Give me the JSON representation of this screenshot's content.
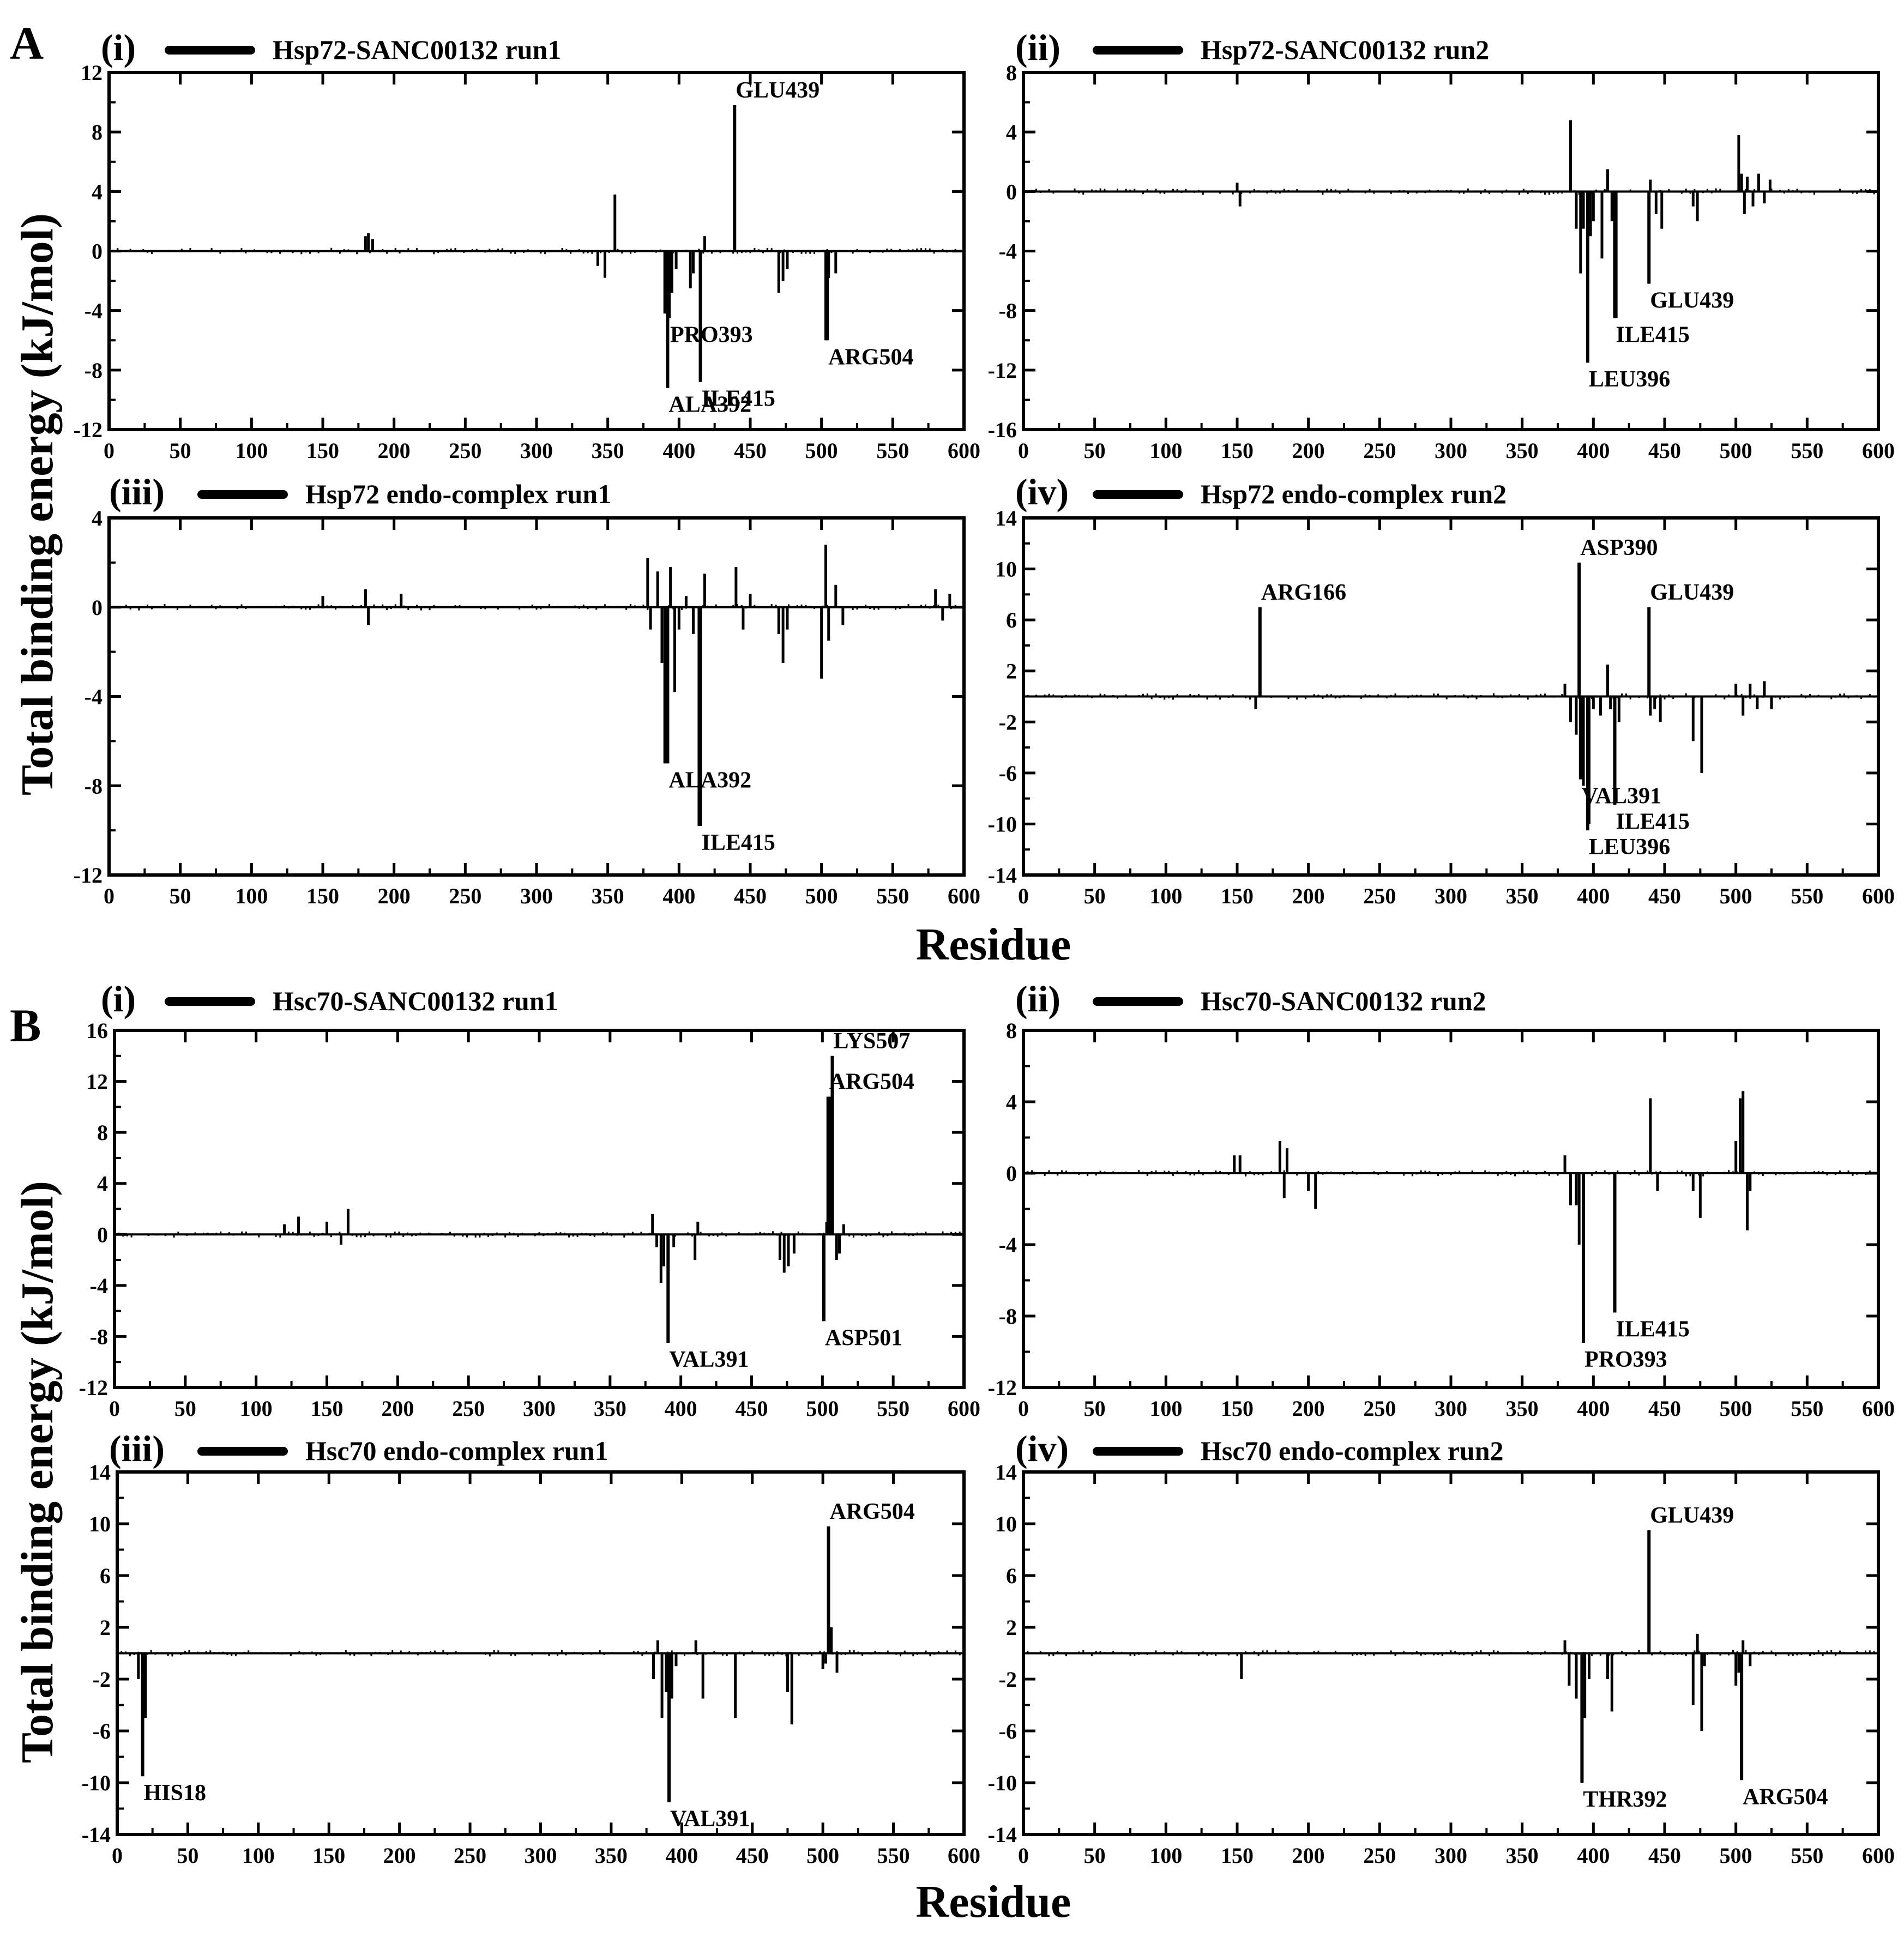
{
  "figure": {
    "section_labels": [
      "A",
      "B"
    ],
    "ylabel": "Total binding energy (kJ/mol)",
    "xlabel": "Residue"
  },
  "chart_data": [
    {
      "type": "bar",
      "section": "A",
      "sub": "(i)",
      "legend": "Hsp72-SANC00132 run1",
      "xlim": [
        0,
        600
      ],
      "xticks": [
        0,
        50,
        100,
        150,
        200,
        250,
        300,
        350,
        400,
        450,
        500,
        550,
        600
      ],
      "ylim": [
        -12,
        12
      ],
      "yticks": [
        -12,
        -8,
        -4,
        0,
        4,
        8,
        12
      ],
      "x": [
        180,
        182,
        185,
        343,
        348,
        355,
        390,
        392,
        393,
        395,
        398,
        408,
        410,
        415,
        418,
        470,
        473,
        476,
        503,
        505,
        510
      ],
      "values": [
        1.0,
        1.2,
        0.8,
        -1.0,
        -1.8,
        3.8,
        -4.2,
        -9.2,
        -4.5,
        -2.8,
        -1.2,
        -2.5,
        -1.5,
        -8.8,
        1.0,
        -2.8,
        -2.0,
        -1.2,
        -6.0,
        -1.8,
        -1.5
      ],
      "annotations": [
        {
          "text": "GLU439",
          "x": 439,
          "y": 9.8
        },
        {
          "text": "PRO393",
          "x": 393,
          "y": -4.5
        },
        {
          "text": "ILE415",
          "x": 415,
          "y": -8.8
        },
        {
          "text": "ALA392",
          "x": 392,
          "y": -9.2
        },
        {
          "text": "ARG504",
          "x": 504,
          "y": -6.0
        }
      ]
    },
    {
      "type": "bar",
      "section": "A",
      "sub": "(ii)",
      "legend": "Hsp72-SANC00132 run2",
      "xlim": [
        0,
        600
      ],
      "xticks": [
        0,
        50,
        100,
        150,
        200,
        250,
        300,
        350,
        400,
        450,
        500,
        550,
        600
      ],
      "ylim": [
        -16,
        8
      ],
      "yticks": [
        -16,
        -12,
        -8,
        -4,
        0,
        4,
        8
      ],
      "x": [
        150,
        152,
        384,
        388,
        391,
        393,
        398,
        400,
        406,
        410,
        413,
        416,
        440,
        444,
        448,
        470,
        473,
        502,
        504,
        506,
        508,
        512,
        516,
        520,
        524
      ],
      "values": [
        0.6,
        -1.0,
        4.8,
        -2.5,
        -5.5,
        -2.5,
        -3.0,
        -2.0,
        -4.5,
        1.5,
        -2.0,
        -8.5,
        0.8,
        -1.5,
        -2.5,
        -1.0,
        -2.0,
        3.8,
        1.2,
        -1.5,
        1.0,
        -1.0,
        1.2,
        -0.8,
        0.8
      ],
      "annotations": [
        {
          "text": "GLU439",
          "x": 439,
          "y": -6.2
        },
        {
          "text": "ILE415",
          "x": 415,
          "y": -8.5
        },
        {
          "text": "LEU396",
          "x": 396,
          "y": -11.5
        }
      ]
    },
    {
      "type": "bar",
      "section": "A",
      "sub": "(iii)",
      "legend": "Hsp72 endo-complex run1",
      "xlim": [
        0,
        600
      ],
      "xticks": [
        0,
        50,
        100,
        150,
        200,
        250,
        300,
        350,
        400,
        450,
        500,
        550,
        600
      ],
      "ylim": [
        -12,
        4
      ],
      "yticks": [
        -12,
        -8,
        -4,
        0,
        4
      ],
      "x": [
        150,
        180,
        182,
        205,
        378,
        380,
        385,
        388,
        390,
        394,
        397,
        400,
        405,
        410,
        414,
        418,
        440,
        445,
        450,
        470,
        473,
        476,
        500,
        503,
        505,
        510,
        515,
        580,
        585,
        590
      ],
      "values": [
        0.5,
        0.8,
        -0.8,
        0.6,
        2.2,
        -1.0,
        1.6,
        -2.5,
        -7.0,
        1.8,
        -3.8,
        -1.0,
        0.5,
        -1.2,
        -9.8,
        1.5,
        1.8,
        -1.0,
        0.6,
        -1.2,
        -2.5,
        -1.0,
        -3.2,
        2.8,
        -1.5,
        1.0,
        -0.8,
        0.8,
        -0.6,
        0.6
      ],
      "annotations": [
        {
          "text": "ALA392",
          "x": 392,
          "y": -7.0
        },
        {
          "text": "ILE415",
          "x": 415,
          "y": -9.8
        }
      ]
    },
    {
      "type": "bar",
      "section": "A",
      "sub": "(iv)",
      "legend": "Hsp72 endo-complex run2",
      "xlim": [
        0,
        600
      ],
      "xticks": [
        0,
        50,
        100,
        150,
        200,
        250,
        300,
        350,
        400,
        450,
        500,
        550,
        600
      ],
      "ylim": [
        -14,
        14
      ],
      "yticks": [
        -14,
        -10,
        -6,
        -2,
        2,
        6,
        10,
        14
      ],
      "x": [
        163,
        380,
        384,
        388,
        393,
        397,
        400,
        405,
        410,
        412,
        418,
        440,
        443,
        447,
        470,
        476,
        500,
        505,
        510,
        515,
        520,
        525
      ],
      "values": [
        -1.0,
        1.0,
        -2.0,
        -3.0,
        -7.0,
        -10.0,
        -1.0,
        -1.5,
        2.5,
        -1.0,
        -2.0,
        -1.5,
        -1.0,
        -2.0,
        -3.5,
        -6.0,
        1.0,
        -1.5,
        1.0,
        -1.0,
        1.2,
        -1.0
      ],
      "annotations": [
        {
          "text": "ARG166",
          "x": 166,
          "y": 7.0
        },
        {
          "text": "ASP390",
          "x": 390,
          "y": 10.5
        },
        {
          "text": "GLU439",
          "x": 439,
          "y": 7.0
        },
        {
          "text": "VAL391",
          "x": 391,
          "y": -6.5
        },
        {
          "text": "ILE415",
          "x": 415,
          "y": -8.5
        },
        {
          "text": "LEU396",
          "x": 396,
          "y": -10.5
        }
      ]
    },
    {
      "type": "bar",
      "section": "B",
      "sub": "(i)",
      "legend": "Hsc70-SANC00132 run1",
      "xlim": [
        0,
        600
      ],
      "xticks": [
        0,
        50,
        100,
        150,
        200,
        250,
        300,
        350,
        400,
        450,
        500,
        550,
        600
      ],
      "ylim": [
        -12,
        16
      ],
      "yticks": [
        -12,
        -8,
        -4,
        0,
        4,
        8,
        12,
        16
      ],
      "x": [
        120,
        130,
        150,
        160,
        165,
        380,
        383,
        386,
        388,
        395,
        410,
        412,
        470,
        473,
        476,
        480,
        503,
        505,
        506,
        510,
        512,
        515
      ],
      "values": [
        0.8,
        1.4,
        1.0,
        -0.8,
        2.0,
        1.6,
        -1.0,
        -3.8,
        -2.5,
        -1.0,
        -2.0,
        1.0,
        -2.0,
        -3.0,
        -2.5,
        -1.5,
        1.0,
        10.8,
        3.0,
        -2.0,
        -1.5,
        0.8
      ],
      "annotations": [
        {
          "text": "LYS507",
          "x": 507,
          "y": 14.0
        },
        {
          "text": "ARG504",
          "x": 504,
          "y": 10.8
        },
        {
          "text": "VAL391",
          "x": 391,
          "y": -8.5
        },
        {
          "text": "ASP501",
          "x": 501,
          "y": -6.8
        }
      ]
    },
    {
      "type": "bar",
      "section": "B",
      "sub": "(ii)",
      "legend": "Hsc70-SANC00132 run2",
      "xlim": [
        0,
        600
      ],
      "xticks": [
        0,
        50,
        100,
        150,
        200,
        250,
        300,
        350,
        400,
        450,
        500,
        550,
        600
      ],
      "ylim": [
        -12,
        8
      ],
      "yticks": [
        -12,
        -8,
        -4,
        0,
        4,
        8
      ],
      "x": [
        148,
        152,
        180,
        183,
        185,
        200,
        205,
        380,
        384,
        388,
        390,
        440,
        445,
        470,
        475,
        500,
        503,
        505,
        508,
        510
      ],
      "values": [
        1.0,
        1.0,
        1.8,
        -1.4,
        1.4,
        -1.0,
        -2.0,
        1.0,
        -1.8,
        -1.8,
        -4.0,
        4.2,
        -1.0,
        -1.0,
        -2.5,
        1.8,
        4.2,
        4.6,
        -3.2,
        -1.0
      ],
      "annotations": [
        {
          "text": "ILE415",
          "x": 415,
          "y": -7.8
        },
        {
          "text": "PRO393",
          "x": 393,
          "y": -9.5
        }
      ]
    },
    {
      "type": "bar",
      "section": "B",
      "sub": "(iii)",
      "legend": "Hsc70 endo-complex run1",
      "xlim": [
        0,
        600
      ],
      "xticks": [
        0,
        50,
        100,
        150,
        200,
        250,
        300,
        350,
        400,
        450,
        500,
        550,
        600
      ],
      "ylim": [
        -14,
        14
      ],
      "yticks": [
        -14,
        -10,
        -6,
        -2,
        2,
        6,
        10,
        14
      ],
      "x": [
        15,
        18,
        20,
        380,
        383,
        386,
        389,
        393,
        396,
        410,
        415,
        438,
        475,
        478,
        500,
        502,
        506,
        510
      ],
      "values": [
        -2.0,
        -9.5,
        -5.0,
        -2.0,
        1.0,
        -5.0,
        -3.0,
        -3.5,
        -1.0,
        1.0,
        -3.5,
        -5.0,
        -3.0,
        -5.5,
        -1.2,
        -0.8,
        2.0,
        -1.5
      ],
      "annotations": [
        {
          "text": "ARG504",
          "x": 504,
          "y": 9.8
        },
        {
          "text": "HIS18",
          "x": 18,
          "y": -9.5
        },
        {
          "text": "VAL391",
          "x": 391,
          "y": -11.5
        }
      ]
    },
    {
      "type": "bar",
      "section": "B",
      "sub": "(iv)",
      "legend": "Hsc70 endo-complex run2",
      "xlim": [
        0,
        600
      ],
      "xticks": [
        0,
        50,
        100,
        150,
        200,
        250,
        300,
        350,
        400,
        450,
        500,
        550,
        600
      ],
      "ylim": [
        -14,
        14
      ],
      "yticks": [
        -14,
        -10,
        -6,
        -2,
        2,
        6,
        10,
        14
      ],
      "x": [
        153,
        380,
        383,
        388,
        394,
        397,
        410,
        413,
        470,
        473,
        476,
        478,
        500,
        502,
        505,
        510
      ],
      "values": [
        -2.0,
        1.0,
        -2.5,
        -3.5,
        -5.0,
        -2.0,
        -2.0,
        -4.5,
        -4.0,
        1.5,
        -6.0,
        -1.0,
        -2.5,
        -1.5,
        1.0,
        -1.0
      ],
      "annotations": [
        {
          "text": "GLU439",
          "x": 439,
          "y": 9.5
        },
        {
          "text": "THR392",
          "x": 392,
          "y": -10.0
        },
        {
          "text": "ARG504",
          "x": 504,
          "y": -9.8
        }
      ]
    }
  ]
}
